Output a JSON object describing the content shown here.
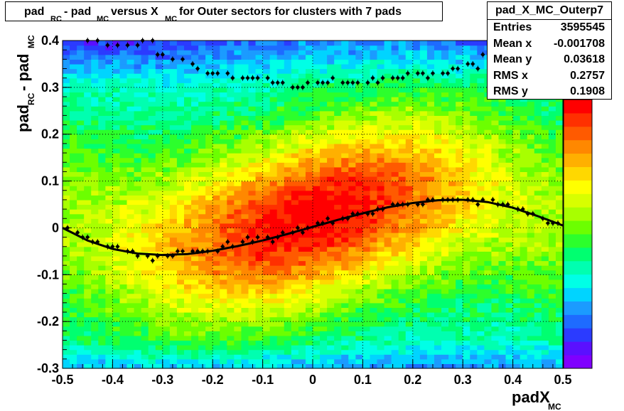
{
  "title": {
    "p1": "pad",
    "s1": "RC",
    "p2": " - pad",
    "s2": "MC",
    "p3": " versus X",
    "s3": "MC",
    "p4": " for Outer sectors for clusters with 7 pads"
  },
  "stats": {
    "name": "pad_X_MC_Outerp7",
    "rows": [
      {
        "label": "Entries",
        "value": "3595545"
      },
      {
        "label": "Mean x",
        "value": "-0.001708"
      },
      {
        "label": "Mean y",
        "value": "0.03618"
      },
      {
        "label": "RMS x",
        "value": "0.2757"
      },
      {
        "label": "RMS y",
        "value": "0.1908"
      }
    ]
  },
  "colors": {
    "profile_markers": "#000000",
    "fit_curve": "#000000",
    "grid": "#000000",
    "palette": "ROOT rainbow (violet-blue-cyan-green-yellow-red)"
  },
  "chart_data": {
    "type": "heatmap",
    "xlabel_main": "padX",
    "xlabel_sub": "MC",
    "ylabel_p1": "pad",
    "ylabel_s1": "RC",
    "ylabel_p2": " - pad",
    "ylabel_s2": "MC",
    "xlim": [
      -0.5,
      0.5
    ],
    "ylim": [
      -0.3,
      0.4
    ],
    "x_ticks": [
      "-0.5",
      "-0.4",
      "-0.3",
      "-0.2",
      "-0.1",
      "0",
      "0.1",
      "0.2",
      "0.3",
      "0.4",
      "0.5"
    ],
    "y_ticks": [
      "-0.3",
      "-0.2",
      "-0.1",
      "0",
      "0.1",
      "0.2",
      "0.3",
      "0.4"
    ],
    "grid": true,
    "color_scale": "linear, no tick labels",
    "density_description_x_bins": 70,
    "density_description_y_bins": 70,
    "profile_points": {
      "x": [
        -0.49,
        -0.47,
        -0.46,
        -0.45,
        -0.44,
        -0.43,
        -0.41,
        -0.4,
        -0.39,
        -0.37,
        -0.36,
        -0.35,
        -0.33,
        -0.32,
        -0.31,
        -0.29,
        -0.28,
        -0.27,
        -0.26,
        -0.24,
        -0.23,
        -0.22,
        -0.21,
        -0.19,
        -0.18,
        -0.17,
        -0.16,
        -0.14,
        -0.13,
        -0.12,
        -0.11,
        -0.09,
        -0.08,
        -0.07,
        -0.06,
        -0.04,
        -0.03,
        -0.02,
        -0.01,
        0.01,
        0.02,
        0.03,
        0.04,
        0.06,
        0.07,
        0.08,
        0.09,
        0.11,
        0.12,
        0.13,
        0.14,
        0.16,
        0.17,
        0.18,
        0.19,
        0.21,
        0.22,
        0.23,
        0.24,
        0.26,
        0.27,
        0.28,
        0.29,
        0.31,
        0.32,
        0.33,
        0.34,
        0.36,
        0.37,
        0.38,
        0.39,
        0.41,
        0.42,
        0.43,
        0.44,
        0.46,
        0.47,
        0.48,
        0.49
      ],
      "y": [
        0.0,
        -0.01,
        -0.02,
        -0.02,
        -0.03,
        -0.03,
        -0.04,
        -0.04,
        -0.04,
        -0.05,
        -0.05,
        -0.06,
        -0.06,
        -0.07,
        -0.06,
        -0.06,
        -0.06,
        -0.05,
        -0.05,
        -0.05,
        -0.05,
        -0.05,
        -0.05,
        -0.05,
        -0.04,
        -0.03,
        -0.04,
        -0.03,
        -0.02,
        -0.03,
        -0.02,
        -0.02,
        -0.03,
        -0.02,
        -0.01,
        -0.01,
        0.0,
        -0.01,
        0.0,
        0.01,
        0.01,
        0.02,
        0.01,
        0.02,
        0.02,
        0.03,
        0.03,
        0.03,
        0.03,
        0.04,
        0.04,
        0.05,
        0.05,
        0.05,
        0.05,
        0.05,
        0.05,
        0.06,
        0.06,
        0.06,
        0.06,
        0.06,
        0.06,
        0.06,
        0.06,
        0.05,
        0.06,
        0.06,
        0.05,
        0.05,
        0.05,
        0.04,
        0.04,
        0.03,
        0.03,
        0.02,
        0.01,
        0.01,
        0.01
      ]
    },
    "upper_profile_points": {
      "x": [
        -0.45,
        -0.43,
        -0.41,
        -0.39,
        -0.37,
        -0.35,
        -0.34,
        -0.32,
        -0.31,
        -0.3,
        -0.28,
        -0.26,
        -0.24,
        -0.23,
        -0.21,
        -0.2,
        -0.19,
        -0.17,
        -0.16,
        -0.14,
        -0.13,
        -0.12,
        -0.11,
        -0.09,
        -0.08,
        -0.07,
        -0.06,
        -0.04,
        -0.03,
        -0.02,
        -0.01,
        0.01,
        0.02,
        0.03,
        0.04,
        0.06,
        0.07,
        0.08,
        0.09,
        0.11,
        0.12,
        0.13,
        0.14,
        0.16,
        0.17,
        0.18,
        0.19,
        0.21,
        0.22,
        0.23,
        0.24,
        0.26,
        0.27,
        0.28,
        0.29,
        0.31,
        0.32,
        0.33,
        0.34,
        0.36,
        0.37,
        0.39,
        0.41,
        0.43,
        0.45,
        0.46,
        0.48,
        0.49
      ],
      "y": [
        0.4,
        0.4,
        0.39,
        0.39,
        0.39,
        0.39,
        0.4,
        0.4,
        0.37,
        0.37,
        0.36,
        0.36,
        0.35,
        0.34,
        0.33,
        0.33,
        0.33,
        0.33,
        0.32,
        0.32,
        0.32,
        0.32,
        0.32,
        0.32,
        0.31,
        0.31,
        0.31,
        0.3,
        0.3,
        0.3,
        0.31,
        0.31,
        0.31,
        0.31,
        0.32,
        0.31,
        0.31,
        0.31,
        0.31,
        0.31,
        0.32,
        0.31,
        0.32,
        0.32,
        0.32,
        0.32,
        0.33,
        0.33,
        0.33,
        0.32,
        0.33,
        0.33,
        0.33,
        0.34,
        0.34,
        0.35,
        0.35,
        0.34,
        0.37,
        0.37,
        0.38,
        0.37,
        0.38,
        0.38,
        0.39,
        0.38,
        0.39,
        0.4
      ]
    },
    "fit_curve": {
      "x": [
        -0.5,
        -0.45,
        -0.4,
        -0.35,
        -0.3,
        -0.25,
        -0.2,
        -0.15,
        -0.1,
        -0.05,
        0.0,
        0.05,
        0.1,
        0.15,
        0.2,
        0.25,
        0.3,
        0.35,
        0.4,
        0.45,
        0.5
      ],
      "y": [
        0.0,
        -0.027,
        -0.045,
        -0.055,
        -0.058,
        -0.056,
        -0.049,
        -0.039,
        -0.027,
        -0.013,
        0.002,
        0.017,
        0.031,
        0.044,
        0.053,
        0.059,
        0.06,
        0.055,
        0.043,
        0.025,
        0.005
      ]
    }
  }
}
